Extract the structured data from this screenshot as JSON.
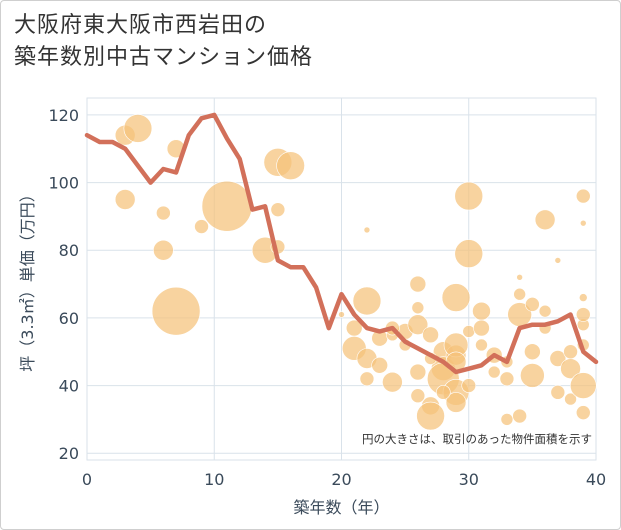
{
  "title_line1": "大阪府東大阪市西岩田の",
  "title_line2": "築年数別中古マンション価格",
  "chart_data": {
    "type": "scatter",
    "xlabel": "築年数（年）",
    "ylabel": "坪（3.3㎡）単価（万円）",
    "xlim": [
      0,
      40
    ],
    "ylim": [
      18,
      125
    ],
    "xticks": [
      0,
      10,
      20,
      30,
      40
    ],
    "yticks": [
      20,
      40,
      60,
      80,
      100,
      120
    ],
    "note": "円の大きさは、取引のあった物件面積を示す",
    "colors": {
      "bubble": "#f5c27a",
      "line": "#d2705a",
      "grid": "#d9e2ea",
      "axis": "#3a4a5a"
    },
    "bubbles": [
      [
        3,
        114,
        10
      ],
      [
        4,
        116,
        14
      ],
      [
        3,
        95,
        10
      ],
      [
        7,
        110,
        9
      ],
      [
        6,
        91,
        7
      ],
      [
        6,
        80,
        10
      ],
      [
        7,
        62,
        24
      ],
      [
        9,
        87,
        7
      ],
      [
        11,
        93,
        25
      ],
      [
        15,
        106,
        14
      ],
      [
        16,
        105,
        14
      ],
      [
        15,
        92,
        7
      ],
      [
        14,
        80,
        13
      ],
      [
        15,
        81,
        7
      ],
      [
        22,
        86,
        3
      ],
      [
        20,
        61,
        3
      ],
      [
        21,
        57,
        8
      ],
      [
        21,
        51,
        12
      ],
      [
        22,
        65,
        14
      ],
      [
        22,
        48,
        10
      ],
      [
        22,
        42,
        7
      ],
      [
        23,
        54,
        8
      ],
      [
        23,
        46,
        8
      ],
      [
        24,
        41,
        10
      ],
      [
        24,
        55,
        6
      ],
      [
        25,
        56,
        8
      ],
      [
        26,
        70,
        8
      ],
      [
        26,
        63,
        6
      ],
      [
        26,
        58,
        10
      ],
      [
        27,
        55,
        8
      ],
      [
        26,
        44,
        8
      ],
      [
        26,
        37,
        7
      ],
      [
        27,
        34,
        9
      ],
      [
        27,
        31,
        14
      ],
      [
        28,
        50,
        10
      ],
      [
        28,
        45,
        12
      ],
      [
        28,
        42,
        16
      ],
      [
        29,
        49,
        10
      ],
      [
        29,
        52,
        12
      ],
      [
        29,
        47,
        10
      ],
      [
        29,
        38,
        13
      ],
      [
        29,
        35,
        10
      ],
      [
        29,
        66,
        14
      ],
      [
        30,
        96,
        14
      ],
      [
        30,
        79,
        14
      ],
      [
        30,
        56,
        6
      ],
      [
        30,
        40,
        7
      ],
      [
        31,
        62,
        9
      ],
      [
        31,
        57,
        8
      ],
      [
        32,
        49,
        8
      ],
      [
        32,
        44,
        6
      ],
      [
        33,
        42,
        7
      ],
      [
        33,
        30,
        6
      ],
      [
        34,
        31,
        7
      ],
      [
        34,
        61,
        12
      ],
      [
        34,
        67,
        6
      ],
      [
        34,
        72,
        3
      ],
      [
        35,
        50,
        8
      ],
      [
        35,
        43,
        12
      ],
      [
        36,
        89,
        10
      ],
      [
        36,
        62,
        6
      ],
      [
        37,
        77,
        3
      ],
      [
        37,
        48,
        8
      ],
      [
        37,
        38,
        7
      ],
      [
        38,
        45,
        10
      ],
      [
        38,
        50,
        7
      ],
      [
        38,
        36,
        6
      ],
      [
        39,
        40,
        13
      ],
      [
        39,
        52,
        6
      ],
      [
        39,
        58,
        6
      ],
      [
        39,
        61,
        7
      ],
      [
        39,
        66,
        4
      ],
      [
        39,
        96,
        7
      ],
      [
        39,
        88,
        3
      ],
      [
        39,
        32,
        7
      ],
      [
        35,
        64,
        7
      ],
      [
        33,
        47,
        6
      ],
      [
        24,
        57,
        7
      ],
      [
        25,
        52,
        6
      ],
      [
        27,
        48,
        6
      ],
      [
        28,
        38,
        7
      ],
      [
        31,
        52,
        6
      ],
      [
        36,
        57,
        6
      ]
    ],
    "series": [
      {
        "name": "average",
        "x": [
          0,
          1,
          2,
          3,
          4,
          5,
          6,
          7,
          8,
          9,
          10,
          11,
          12,
          13,
          14,
          15,
          16,
          17,
          18,
          19,
          20,
          21,
          22,
          23,
          24,
          25,
          26,
          27,
          28,
          29,
          30,
          31,
          32,
          33,
          34,
          35,
          36,
          37,
          38,
          39,
          40
        ],
        "values": [
          114,
          112,
          112,
          110,
          105,
          100,
          104,
          103,
          114,
          119,
          120,
          113,
          107,
          92,
          93,
          77,
          75,
          75,
          69,
          57,
          67,
          61,
          57,
          56,
          57,
          53,
          51,
          49,
          47,
          44,
          45,
          46,
          49,
          47,
          57,
          58,
          58,
          59,
          61,
          50,
          47
        ]
      }
    ]
  }
}
